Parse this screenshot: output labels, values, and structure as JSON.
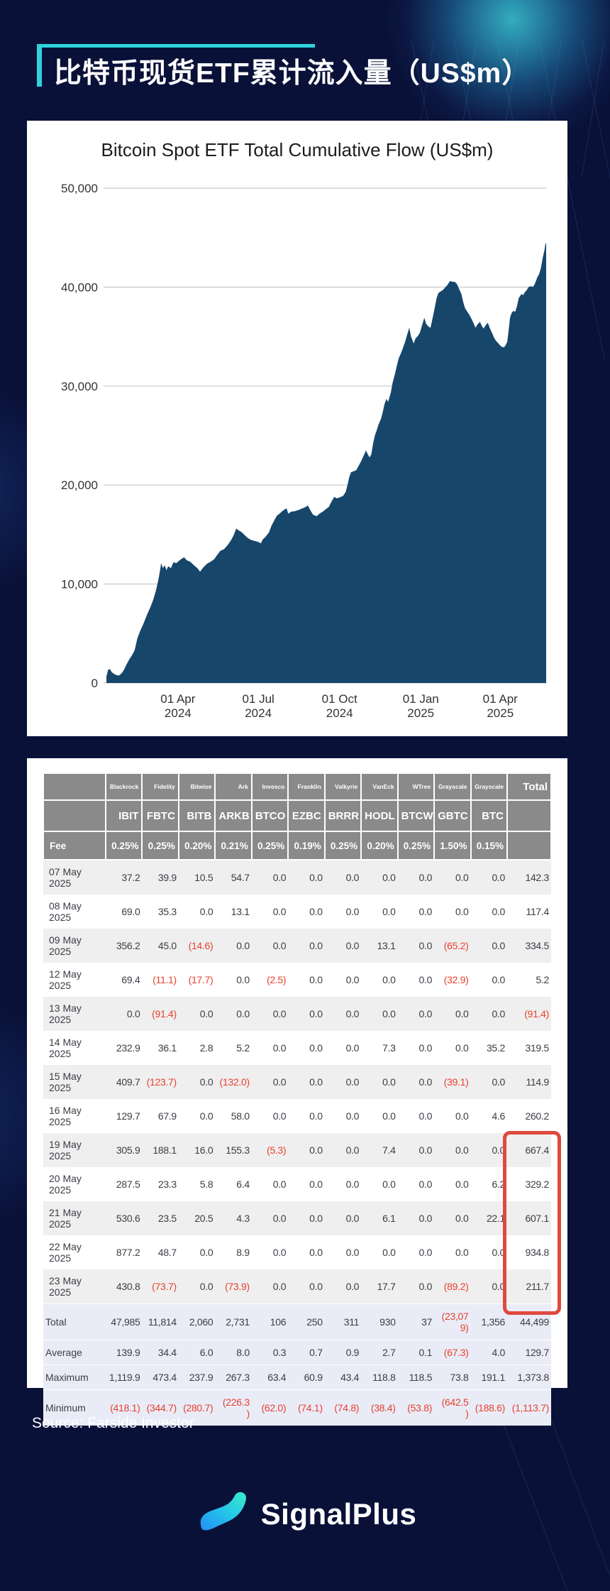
{
  "page": {
    "bg_color": "#0A1138",
    "accent_color": "#2FD3DC",
    "title_zh": "比特币现货ETF累计流入量（US$m）",
    "source": "Source: Farside Investor",
    "brand": "SignalPlus"
  },
  "chart_data": {
    "type": "area",
    "title": "Bitcoin Spot ETF Total Cumulative Flow (US$m)",
    "fill_color": "#17466B",
    "grid_color": "#C9C9C9",
    "axis_text_color": "#333333",
    "ylim": [
      0,
      50000
    ],
    "y_ticks": [
      {
        "label": "0",
        "value": 0
      },
      {
        "label": "10,000",
        "value": 10000
      },
      {
        "label": "20,000",
        "value": 20000
      },
      {
        "label": "30,000",
        "value": 30000
      },
      {
        "label": "40,000",
        "value": 40000
      },
      {
        "label": "50,000",
        "value": 50000
      }
    ],
    "x_ticks": [
      {
        "line1": "01 Apr",
        "line2": "2024",
        "day": 81
      },
      {
        "line1": "01 Jul",
        "line2": "2024",
        "day": 172
      },
      {
        "line1": "01 Oct",
        "line2": "2024",
        "day": 264
      },
      {
        "line1": "01 Jan",
        "line2": "2025",
        "day": 356
      },
      {
        "line1": "01 Apr",
        "line2": "2025",
        "day": 446
      }
    ],
    "x_domain_days": [
      0,
      498
    ],
    "grid_on": true,
    "legend": "none",
    "series": [
      {
        "name": "Total Cumulative Flow (US$m)",
        "points": [
          [
            0,
            650
          ],
          [
            2,
            1350
          ],
          [
            4,
            1400
          ],
          [
            6,
            1100
          ],
          [
            9,
            900
          ],
          [
            12,
            780
          ],
          [
            14,
            745
          ],
          [
            17,
            950
          ],
          [
            20,
            1350
          ],
          [
            23,
            1900
          ],
          [
            26,
            2400
          ],
          [
            29,
            2800
          ],
          [
            32,
            3300
          ],
          [
            35,
            4500
          ],
          [
            38,
            5200
          ],
          [
            42,
            6000
          ],
          [
            46,
            6900
          ],
          [
            50,
            7700
          ],
          [
            53,
            8400
          ],
          [
            56,
            9300
          ],
          [
            59,
            10500
          ],
          [
            61,
            11500
          ],
          [
            62,
            12100
          ],
          [
            64,
            11600
          ],
          [
            66,
            11900
          ],
          [
            68,
            11400
          ],
          [
            70,
            11800
          ],
          [
            73,
            11600
          ],
          [
            76,
            12200
          ],
          [
            79,
            12100
          ],
          [
            83,
            12400
          ],
          [
            86,
            12600
          ],
          [
            88,
            12700
          ],
          [
            91,
            12400
          ],
          [
            95,
            12250
          ],
          [
            99,
            11900
          ],
          [
            103,
            11600
          ],
          [
            106,
            11250
          ],
          [
            110,
            11700
          ],
          [
            114,
            12050
          ],
          [
            118,
            12250
          ],
          [
            122,
            12500
          ],
          [
            126,
            13000
          ],
          [
            129,
            13350
          ],
          [
            133,
            13500
          ],
          [
            137,
            13900
          ],
          [
            141,
            14400
          ],
          [
            144,
            14900
          ],
          [
            147,
            15600
          ],
          [
            150,
            15400
          ],
          [
            153,
            15250
          ],
          [
            157,
            14900
          ],
          [
            160,
            14650
          ],
          [
            164,
            14450
          ],
          [
            168,
            14350
          ],
          [
            172,
            14250
          ],
          [
            175,
            14100
          ],
          [
            177,
            14500
          ],
          [
            180,
            14750
          ],
          [
            184,
            15200
          ],
          [
            187,
            15900
          ],
          [
            190,
            16400
          ],
          [
            193,
            16900
          ],
          [
            196,
            17100
          ],
          [
            199,
            17350
          ],
          [
            202,
            17550
          ],
          [
            204,
            17650
          ],
          [
            206,
            17100
          ],
          [
            209,
            17300
          ],
          [
            213,
            17350
          ],
          [
            218,
            17500
          ],
          [
            222,
            17650
          ],
          [
            226,
            17800
          ],
          [
            228,
            17950
          ],
          [
            231,
            17450
          ],
          [
            234,
            17000
          ],
          [
            238,
            16850
          ],
          [
            242,
            17150
          ],
          [
            245,
            17300
          ],
          [
            249,
            17600
          ],
          [
            252,
            17800
          ],
          [
            255,
            18350
          ],
          [
            258,
            18800
          ],
          [
            261,
            18650
          ],
          [
            264,
            18750
          ],
          [
            268,
            18900
          ],
          [
            271,
            19300
          ],
          [
            273,
            20000
          ],
          [
            275,
            20800
          ],
          [
            277,
            21300
          ],
          [
            280,
            21400
          ],
          [
            283,
            21500
          ],
          [
            286,
            22000
          ],
          [
            289,
            22500
          ],
          [
            292,
            23100
          ],
          [
            294,
            23500
          ],
          [
            296,
            23100
          ],
          [
            298,
            22800
          ],
          [
            300,
            23100
          ],
          [
            302,
            24200
          ],
          [
            304,
            25000
          ],
          [
            306,
            25500
          ],
          [
            308,
            26100
          ],
          [
            311,
            26700
          ],
          [
            313,
            27400
          ],
          [
            315,
            28200
          ],
          [
            317,
            28700
          ],
          [
            319,
            28400
          ],
          [
            322,
            29300
          ],
          [
            324,
            30300
          ],
          [
            327,
            31300
          ],
          [
            329,
            32100
          ],
          [
            331,
            32800
          ],
          [
            334,
            33400
          ],
          [
            336,
            33900
          ],
          [
            338,
            34400
          ],
          [
            341,
            35300
          ],
          [
            343,
            35900
          ],
          [
            345,
            35000
          ],
          [
            348,
            34300
          ],
          [
            350,
            34800
          ],
          [
            353,
            35100
          ],
          [
            355,
            35400
          ],
          [
            358,
            36300
          ],
          [
            360,
            36900
          ],
          [
            362,
            36300
          ],
          [
            365,
            36000
          ],
          [
            367,
            35900
          ],
          [
            370,
            37100
          ],
          [
            372,
            38000
          ],
          [
            374,
            38900
          ],
          [
            376,
            39400
          ],
          [
            379,
            39600
          ],
          [
            381,
            39700
          ],
          [
            383,
            39900
          ],
          [
            386,
            40200
          ],
          [
            389,
            40600
          ],
          [
            392,
            40550
          ],
          [
            395,
            40500
          ],
          [
            397,
            40300
          ],
          [
            399,
            39900
          ],
          [
            402,
            39300
          ],
          [
            404,
            38500
          ],
          [
            406,
            37900
          ],
          [
            408,
            37600
          ],
          [
            411,
            37200
          ],
          [
            414,
            36700
          ],
          [
            416,
            36300
          ],
          [
            418,
            35900
          ],
          [
            420,
            36200
          ],
          [
            423,
            36500
          ],
          [
            425,
            36100
          ],
          [
            427,
            35800
          ],
          [
            430,
            36200
          ],
          [
            432,
            36400
          ],
          [
            434,
            35900
          ],
          [
            437,
            35300
          ],
          [
            439,
            34900
          ],
          [
            441,
            34600
          ],
          [
            444,
            34300
          ],
          [
            447,
            34000
          ],
          [
            450,
            33900
          ],
          [
            452,
            34100
          ],
          [
            454,
            34500
          ],
          [
            456,
            36000
          ],
          [
            457,
            36900
          ],
          [
            459,
            37400
          ],
          [
            461,
            37600
          ],
          [
            463,
            37500
          ],
          [
            465,
            38100
          ],
          [
            467,
            38900
          ],
          [
            470,
            39300
          ],
          [
            472,
            39200
          ],
          [
            474,
            39500
          ],
          [
            476,
            39700
          ],
          [
            478,
            40000
          ],
          [
            481,
            40100
          ],
          [
            483,
            40000
          ],
          [
            485,
            40300
          ],
          [
            488,
            41000
          ],
          [
            490,
            41300
          ],
          [
            492,
            41900
          ],
          [
            494,
            42900
          ],
          [
            496,
            43700
          ],
          [
            497,
            44300
          ],
          [
            498,
            44499
          ]
        ]
      }
    ]
  },
  "table": {
    "header": {
      "corner": "",
      "issuers": [
        "Blackrock",
        "Fidelity",
        "Bitwise",
        "Ark",
        "Invesco",
        "Franklin",
        "Valkyrie",
        "VanEck",
        "WTree",
        "Grayscale",
        "Grayscale"
      ],
      "total_label": "Total",
      "tickers": [
        "IBIT",
        "FBTC",
        "BITB",
        "ARKB",
        "BTCO",
        "EZBC",
        "BRRR",
        "HODL",
        "BTCW",
        "GBTC",
        "BTC"
      ],
      "fee_label": "Fee",
      "fees": [
        "0.25%",
        "0.25%",
        "0.20%",
        "0.21%",
        "0.25%",
        "0.19%",
        "0.25%",
        "0.20%",
        "0.25%",
        "1.50%",
        "0.15%"
      ]
    },
    "rows": [
      {
        "date": "07 May 2025",
        "values": [
          "37.2",
          "39.9",
          "10.5",
          "54.7",
          "0.0",
          "0.0",
          "0.0",
          "0.0",
          "0.0",
          "0.0",
          "0.0",
          "142.3"
        ]
      },
      {
        "date": "08 May\n2025",
        "values": [
          "69.0",
          "35.3",
          "0.0",
          "13.1",
          "0.0",
          "0.0",
          "0.0",
          "0.0",
          "0.0",
          "0.0",
          "0.0",
          "117.4"
        ]
      },
      {
        "date": "09 May\n2025",
        "values": [
          "356.2",
          "45.0",
          "(14.6)",
          "0.0",
          "0.0",
          "0.0",
          "0.0",
          "13.1",
          "0.0",
          "(65.2)",
          "0.0",
          "334.5"
        ]
      },
      {
        "date": "12 May 2025",
        "values": [
          "69.4",
          "(11.1)",
          "(17.7)",
          "0.0",
          "(2.5)",
          "0.0",
          "0.0",
          "0.0",
          "0.0",
          "(32.9)",
          "0.0",
          "5.2"
        ]
      },
      {
        "date": "13 May 2025",
        "values": [
          "0.0",
          "(91.4)",
          "0.0",
          "0.0",
          "0.0",
          "0.0",
          "0.0",
          "0.0",
          "0.0",
          "0.0",
          "0.0",
          "(91.4)"
        ]
      },
      {
        "date": "14 May 2025",
        "values": [
          "232.9",
          "36.1",
          "2.8",
          "5.2",
          "0.0",
          "0.0",
          "0.0",
          "7.3",
          "0.0",
          "0.0",
          "35.2",
          "319.5"
        ]
      },
      {
        "date": "15 May 2025",
        "values": [
          "409.7",
          "(123.7)",
          "0.0",
          "(132.0)",
          "0.0",
          "0.0",
          "0.0",
          "0.0",
          "0.0",
          "(39.1)",
          "0.0",
          "114.9"
        ]
      },
      {
        "date": "16 May 2025",
        "values": [
          "129.7",
          "67.9",
          "0.0",
          "58.0",
          "0.0",
          "0.0",
          "0.0",
          "0.0",
          "0.0",
          "0.0",
          "4.6",
          "260.2"
        ]
      },
      {
        "date": "19 May 2025",
        "values": [
          "305.9",
          "188.1",
          "16.0",
          "155.3",
          "(5.3)",
          "0.0",
          "0.0",
          "7.4",
          "0.0",
          "0.0",
          "0.0",
          "667.4"
        ]
      },
      {
        "date": "20 May\n2025",
        "values": [
          "287.5",
          "23.3",
          "5.8",
          "6.4",
          "0.0",
          "0.0",
          "0.0",
          "0.0",
          "0.0",
          "0.0",
          "6.2",
          "329.2"
        ]
      },
      {
        "date": "21 May 2025",
        "values": [
          "530.6",
          "23.5",
          "20.5",
          "4.3",
          "0.0",
          "0.0",
          "0.0",
          "6.1",
          "0.0",
          "0.0",
          "22.1",
          "607.1"
        ]
      },
      {
        "date": "22 May 2025",
        "values": [
          "877.2",
          "48.7",
          "0.0",
          "8.9",
          "0.0",
          "0.0",
          "0.0",
          "0.0",
          "0.0",
          "0.0",
          "0.0",
          "934.8"
        ]
      },
      {
        "date": "23 May\n2025",
        "values": [
          "430.8",
          "(73.7)",
          "0.0",
          "(73.9)",
          "0.0",
          "0.0",
          "0.0",
          "17.7",
          "0.0",
          "(89.2)",
          "0.0",
          "211.7"
        ]
      }
    ],
    "summary": [
      {
        "label": "Total",
        "values": [
          "47,985",
          "11,814",
          "2,060",
          "2,731",
          "106",
          "250",
          "311",
          "930",
          "37",
          "(23,07\n9)",
          "1,356",
          "44,499"
        ]
      },
      {
        "label": "Average",
        "values": [
          "139.9",
          "34.4",
          "6.0",
          "8.0",
          "0.3",
          "0.7",
          "0.9",
          "2.7",
          "0.1",
          "(67.3)",
          "4.0",
          "129.7"
        ]
      },
      {
        "label": "Maximum",
        "values": [
          "1,119.9",
          "473.4",
          "237.9",
          "267.3",
          "63.4",
          "60.9",
          "43.4",
          "118.8",
          "118.5",
          "73.8",
          "191.1",
          "1,373.8"
        ]
      },
      {
        "label": "Minimum",
        "values": [
          "(418.1)",
          "(344.7)",
          "(280.7)",
          "(226.3\n)",
          "(62.0)",
          "(74.1)",
          "(74.8)",
          "(38.4)",
          "(53.8)",
          "(642.5\n)",
          "(188.6)",
          "(1,113.7)"
        ]
      }
    ],
    "highlight": {
      "start_row": 8,
      "end_row": 12,
      "color": "#E0493F"
    }
  }
}
